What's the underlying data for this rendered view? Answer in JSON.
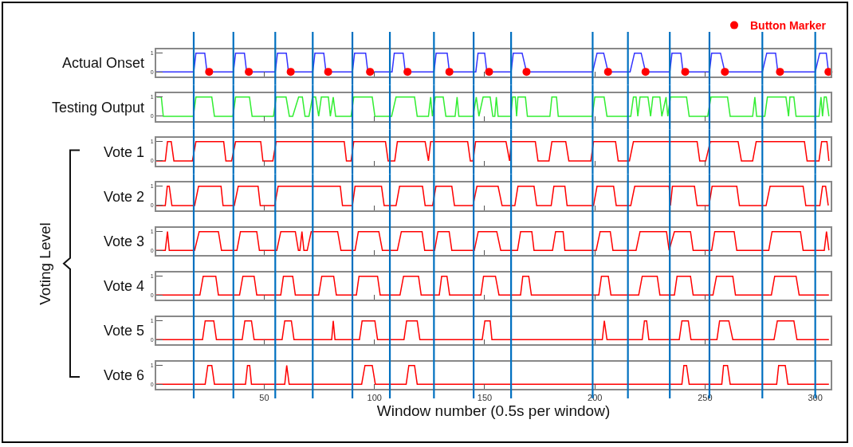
{
  "chart_data": [
    {
      "type": "line",
      "ylabel": "Actual Onset",
      "xlim": [
        1,
        307
      ],
      "xticks": [
        50,
        100,
        150,
        200,
        250,
        300
      ],
      "ylim": [
        -0.25,
        1.2
      ],
      "yticks": [
        0,
        1
      ],
      "tick_labels": "y",
      "legend": "top right",
      "series": [
        {
          "type": "line",
          "color": "#3333ff",
          "x": [
            1,
            18,
            19,
            23,
            24,
            36,
            37,
            41,
            42,
            55,
            56,
            60,
            61,
            72,
            73,
            77,
            78,
            90,
            91,
            96,
            97,
            108,
            109,
            113,
            114,
            127,
            128,
            133,
            134,
            146,
            147,
            150,
            151,
            162,
            163,
            167,
            169,
            199,
            201,
            204,
            206,
            216,
            218,
            221,
            223,
            234,
            235,
            239,
            240,
            252,
            253,
            257,
            259,
            276,
            278,
            282,
            283,
            300,
            302,
            305,
            306
          ],
          "values": [
            0,
            0,
            1,
            1,
            0,
            0,
            1,
            1,
            0,
            0,
            1,
            1,
            0,
            0,
            1,
            1,
            0,
            0,
            1,
            1,
            0,
            0,
            1,
            1,
            0,
            0,
            1,
            1,
            0,
            0,
            1,
            1,
            0,
            0,
            1,
            1,
            0,
            0,
            1,
            1,
            0,
            0,
            1,
            1,
            0,
            0,
            1,
            1,
            0,
            0,
            1,
            1,
            0,
            0,
            1,
            1,
            0,
            0,
            1,
            1,
            0
          ]
        },
        {
          "type": "scatter",
          "name": "Button Marker",
          "color": "#ff0000",
          "marker": "circle",
          "x": [
            25,
            43,
            62,
            79,
            98,
            115,
            134,
            152,
            169,
            206,
            223,
            241,
            259,
            284,
            306
          ],
          "values": [
            0,
            0,
            0,
            0,
            0,
            0,
            0,
            0,
            0,
            0,
            0,
            0,
            0,
            0,
            0
          ]
        }
      ],
      "ref_lines": [
        {
          "axis": "x",
          "value": 18
        },
        {
          "axis": "x",
          "value": 36
        },
        {
          "axis": "x",
          "value": 55
        },
        {
          "axis": "x",
          "value": 72
        },
        {
          "axis": "x",
          "value": 90
        },
        {
          "axis": "x",
          "value": 107
        },
        {
          "axis": "x",
          "value": 127
        },
        {
          "axis": "x",
          "value": 145
        },
        {
          "axis": "x",
          "value": 162
        },
        {
          "axis": "x",
          "value": 199
        },
        {
          "axis": "x",
          "value": 215
        },
        {
          "axis": "x",
          "value": 234
        },
        {
          "axis": "x",
          "value": 252
        },
        {
          "axis": "x",
          "value": 276
        },
        {
          "axis": "x",
          "value": 300
        }
      ]
    },
    {
      "type": "line",
      "ylabel": "Testing Output",
      "xlim": [
        1,
        307
      ],
      "xticks": [
        50,
        100,
        150,
        200,
        250,
        300
      ],
      "ylim": [
        -0.25,
        1.2
      ],
      "yticks": [
        0,
        1
      ],
      "tick_labels": "y",
      "series": [
        {
          "color": "#33ee33",
          "x": [
            1.3,
            3.3,
            4.2,
            17.8,
            19,
            26.2,
            27.4,
            35.8,
            37,
            43.3,
            44.5,
            54.2,
            55.4,
            59.9,
            61.4,
            62.9,
            65.6,
            67.3,
            68.5,
            70.3,
            71.9,
            73.3,
            74.7,
            75.9,
            79.1,
            80,
            81.3,
            82.4,
            89.4,
            90.6,
            99,
            100.2,
            107.8,
            109.8,
            118.2,
            119.4,
            124.5,
            125.5,
            126.3,
            127.6,
            131.2,
            132.4,
            136.6,
            137.5,
            138.3,
            144.7,
            146.2,
            147.4,
            149.3,
            152.5,
            153.7,
            154.6,
            155.3,
            156.1,
            161.8,
            162.7,
            163.9,
            164.5,
            165.1,
            168.5,
            169.4,
            179.6,
            180.5,
            182.6,
            183.4,
            198.8,
            200,
            204.2,
            205.5,
            216.3,
            217.5,
            218.7,
            219.5,
            220.5,
            224.1,
            225.3,
            226.3,
            229.5,
            230.4,
            232.3,
            233.1,
            234.3,
            241.6,
            242.8,
            251.2,
            252.7,
            260.2,
            261.4,
            271.6,
            272.6,
            273.4,
            277.1,
            278.3,
            286.7,
            287.9,
            288.5,
            290.3,
            291.3,
            301.7,
            302.6,
            303.3,
            304.1,
            305,
            306.2
          ],
          "values": [
            1,
            1,
            0,
            0,
            1,
            1,
            0,
            0,
            1,
            1,
            0,
            0,
            1,
            1,
            0,
            0,
            1,
            1,
            0,
            0,
            1,
            1,
            0,
            1,
            1,
            0,
            1,
            0,
            0,
            1,
            1,
            0,
            0,
            1,
            1,
            0,
            0,
            1,
            0,
            1,
            1,
            0,
            0,
            1,
            0,
            0,
            1,
            0,
            1,
            1,
            0,
            0,
            1,
            0,
            0,
            1,
            1,
            0,
            1,
            1,
            0,
            0,
            1,
            1,
            0,
            0,
            1,
            1,
            0,
            0,
            1,
            1,
            0,
            1,
            1,
            0,
            1,
            1,
            0,
            1,
            0,
            1,
            1,
            0,
            0,
            1,
            1,
            0,
            0,
            1,
            0,
            0,
            1,
            1,
            0,
            1,
            1,
            0,
            0,
            1,
            0,
            1,
            1,
            0
          ]
        }
      ],
      "ref_lines": [
        {
          "axis": "x",
          "value": 18
        },
        {
          "axis": "x",
          "value": 36
        },
        {
          "axis": "x",
          "value": 55
        },
        {
          "axis": "x",
          "value": 72
        },
        {
          "axis": "x",
          "value": 90
        },
        {
          "axis": "x",
          "value": 107
        },
        {
          "axis": "x",
          "value": 127
        },
        {
          "axis": "x",
          "value": 145
        },
        {
          "axis": "x",
          "value": 162
        },
        {
          "axis": "x",
          "value": 199
        },
        {
          "axis": "x",
          "value": 215
        },
        {
          "axis": "x",
          "value": 234
        },
        {
          "axis": "x",
          "value": 252
        },
        {
          "axis": "x",
          "value": 276
        },
        {
          "axis": "x",
          "value": 300
        }
      ]
    },
    {
      "type": "line",
      "ylabel": "Vote 1",
      "annotations": [
        "Voting Level"
      ],
      "xlim": [
        1,
        307
      ],
      "xticks": [
        50,
        100,
        150,
        200,
        250,
        300
      ],
      "ylim": [
        -0.25,
        1.2
      ],
      "yticks": [
        0,
        1
      ],
      "tick_labels": "y",
      "series": [
        {
          "color": "#ff0000",
          "x": [
            1,
            5.1,
            6.1,
            7.8,
            9,
            17.4,
            19,
            31.6,
            32.6,
            35.2,
            37,
            48.4,
            49.4,
            53.9,
            55.4,
            86.3,
            87.3,
            89.4,
            90.6,
            105,
            106.2,
            109.2,
            110.4,
            123,
            124.5,
            125.5,
            142.3,
            143.5,
            144.7,
            145.9,
            159.7,
            161.3,
            162.1,
            173,
            174.2,
            179.2,
            180.5,
            186.8,
            188.2,
            198.2,
            199.4,
            209.4,
            210.6,
            215.7,
            217.5,
            246.4,
            247.6,
            250.3,
            252.4,
            265,
            266.5,
            271.6,
            273.2,
            295.1,
            296.3,
            301.7,
            302.9,
            305.3,
            306.2
          ],
          "values": [
            0,
            0,
            1,
            1,
            0,
            0,
            1,
            1,
            0,
            0,
            1,
            1,
            0,
            0,
            1,
            1,
            0,
            0,
            1,
            1,
            0,
            0,
            1,
            1,
            0,
            1,
            1,
            0,
            0,
            1,
            1,
            0,
            1,
            1,
            0,
            0,
            1,
            1,
            0,
            0,
            1,
            1,
            0,
            0,
            1,
            1,
            0,
            0,
            1,
            1,
            0,
            0,
            1,
            1,
            0,
            0,
            1,
            1,
            0
          ]
        }
      ],
      "ref_lines": [
        {
          "axis": "x",
          "value": 18
        },
        {
          "axis": "x",
          "value": 36
        },
        {
          "axis": "x",
          "value": 55
        },
        {
          "axis": "x",
          "value": 72
        },
        {
          "axis": "x",
          "value": 90
        },
        {
          "axis": "x",
          "value": 107
        },
        {
          "axis": "x",
          "value": 127
        },
        {
          "axis": "x",
          "value": 145
        },
        {
          "axis": "x",
          "value": 162
        },
        {
          "axis": "x",
          "value": 199
        },
        {
          "axis": "x",
          "value": 215
        },
        {
          "axis": "x",
          "value": 234
        },
        {
          "axis": "x",
          "value": 252
        },
        {
          "axis": "x",
          "value": 276
        },
        {
          "axis": "x",
          "value": 300
        }
      ]
    },
    {
      "type": "line",
      "ylabel": "Vote 2",
      "xlim": [
        1,
        307
      ],
      "xticks": [
        50,
        100,
        150,
        200,
        250,
        300
      ],
      "ylim": [
        -0.25,
        1.2
      ],
      "yticks": [
        0,
        1
      ],
      "tick_labels": "y",
      "series": [
        {
          "color": "#ff0000",
          "x": [
            1,
            5.1,
            6,
            6.9,
            8.1,
            18.4,
            20.2,
            30.4,
            31.3,
            36.4,
            38.2,
            47.2,
            48.2,
            54.7,
            56.3,
            84.5,
            85.5,
            90,
            91.2,
            103.2,
            104.4,
            109.8,
            111.4,
            121.8,
            123,
            126.4,
            127.9,
            135.1,
            136.3,
            144.7,
            146.5,
            156.1,
            157.9,
            163.7,
            165.1,
            172.4,
            173.6,
            180.2,
            181.4,
            186.4,
            187.4,
            199.4,
            201,
            208.5,
            209.7,
            216.3,
            218.1,
            233.7,
            234.3,
            235.2,
            245.2,
            246.4,
            251.8,
            253.2,
            264.4,
            265.6,
            277.7,
            279.5,
            294.5,
            295.7,
            302.1,
            303.3,
            304.7,
            305.9
          ],
          "values": [
            0,
            0,
            1,
            1,
            0,
            0,
            1,
            1,
            0,
            0,
            1,
            1,
            0,
            0,
            1,
            1,
            0,
            0,
            1,
            1,
            0,
            0,
            1,
            1,
            0,
            0,
            1,
            1,
            0,
            0,
            1,
            1,
            0,
            0,
            1,
            1,
            0,
            0,
            1,
            1,
            0,
            0,
            1,
            1,
            0,
            0,
            1,
            1,
            0,
            1,
            1,
            0,
            0,
            1,
            1,
            0,
            0,
            1,
            1,
            0,
            0,
            1,
            1,
            0
          ]
        }
      ],
      "ref_lines": [
        {
          "axis": "x",
          "value": 18
        },
        {
          "axis": "x",
          "value": 36
        },
        {
          "axis": "x",
          "value": 55
        },
        {
          "axis": "x",
          "value": 72
        },
        {
          "axis": "x",
          "value": 90
        },
        {
          "axis": "x",
          "value": 107
        },
        {
          "axis": "x",
          "value": 127
        },
        {
          "axis": "x",
          "value": 145
        },
        {
          "axis": "x",
          "value": 162
        },
        {
          "axis": "x",
          "value": 199
        },
        {
          "axis": "x",
          "value": 215
        },
        {
          "axis": "x",
          "value": 234
        },
        {
          "axis": "x",
          "value": 252
        },
        {
          "axis": "x",
          "value": 276
        },
        {
          "axis": "x",
          "value": 300
        }
      ]
    },
    {
      "type": "line",
      "ylabel": "Vote 3",
      "xlim": [
        1,
        307
      ],
      "xticks": [
        50,
        100,
        150,
        200,
        250,
        300
      ],
      "ylim": [
        -0.25,
        1.2
      ],
      "yticks": [
        0,
        1
      ],
      "tick_labels": "y",
      "series": [
        {
          "color": "#ff0000",
          "x": [
            1,
            5.1,
            6.1,
            6.9,
            18.4,
            20.5,
            29.2,
            30.6,
            37.6,
            39.2,
            46.6,
            47.8,
            55.7,
            57.5,
            64.1,
            65.5,
            66.2,
            67.1,
            68,
            69.5,
            71.3,
            83.3,
            84.8,
            91.2,
            92.7,
            102,
            103.6,
            110.4,
            112.2,
            121.6,
            122.8,
            127.3,
            128.8,
            133.9,
            135.1,
            145.3,
            147.1,
            155.5,
            157.3,
            164.9,
            166.3,
            171.4,
            172.4,
            180.8,
            182.2,
            185.6,
            186.4,
            200.6,
            202.4,
            207,
            208.2,
            218.7,
            220.5,
            232.5,
            233.7,
            236.1,
            243.4,
            244.6,
            253,
            254.4,
            263.2,
            264.4,
            278.9,
            280.4,
            293.3,
            294.5,
            304.1,
            305.1,
            306.2
          ],
          "values": [
            0,
            0,
            1,
            0,
            0,
            1,
            1,
            0,
            0,
            1,
            1,
            0,
            0,
            1,
            1,
            0,
            0,
            1,
            0,
            0,
            1,
            1,
            0,
            0,
            1,
            1,
            0,
            0,
            1,
            1,
            0,
            0,
            1,
            1,
            0,
            0,
            1,
            1,
            0,
            0,
            1,
            1,
            0,
            0,
            1,
            1,
            0,
            0,
            1,
            1,
            0,
            0,
            1,
            1,
            0,
            1,
            1,
            0,
            0,
            1,
            1,
            0,
            0,
            1,
            1,
            0,
            0,
            1,
            0
          ]
        }
      ],
      "ref_lines": [
        {
          "axis": "x",
          "value": 18
        },
        {
          "axis": "x",
          "value": 36
        },
        {
          "axis": "x",
          "value": 55
        },
        {
          "axis": "x",
          "value": 72
        },
        {
          "axis": "x",
          "value": 90
        },
        {
          "axis": "x",
          "value": 107
        },
        {
          "axis": "x",
          "value": 127
        },
        {
          "axis": "x",
          "value": 145
        },
        {
          "axis": "x",
          "value": 162
        },
        {
          "axis": "x",
          "value": 199
        },
        {
          "axis": "x",
          "value": 215
        },
        {
          "axis": "x",
          "value": 234
        },
        {
          "axis": "x",
          "value": 252
        },
        {
          "axis": "x",
          "value": 276
        },
        {
          "axis": "x",
          "value": 300
        }
      ]
    },
    {
      "type": "line",
      "ylabel": "Vote 4",
      "xlim": [
        1,
        307
      ],
      "xticks": [
        50,
        100,
        150,
        200,
        250,
        300
      ],
      "ylim": [
        -0.25,
        1.2
      ],
      "yticks": [
        0,
        1
      ],
      "tick_labels": "y",
      "series": [
        {
          "color": "#ff0000",
          "x": [
            1,
            20.8,
            22.3,
            28,
            29.2,
            38.8,
            40.3,
            45.4,
            46.6,
            57.5,
            58.7,
            62.9,
            64.1,
            74.7,
            76.1,
            81.5,
            82.7,
            91.8,
            93,
            101.4,
            102.6,
            111.6,
            113.2,
            120,
            121.2,
            129.4,
            130.5,
            132.9,
            134.1,
            148.3,
            149.5,
            154.9,
            156.5,
            166.3,
            167.3,
            170,
            171.2,
            201.8,
            203,
            206.1,
            207.3,
            219.9,
            221.5,
            228.3,
            229.5,
            236.1,
            237.3,
            243.4,
            244.6,
            253.6,
            255.2,
            262.6,
            263.8,
            280.1,
            281.6,
            291.3,
            292.7,
            306.2
          ],
          "values": [
            0,
            0,
            1,
            1,
            0,
            0,
            1,
            1,
            0,
            0,
            1,
            1,
            0,
            0,
            1,
            1,
            0,
            0,
            1,
            1,
            0,
            0,
            1,
            1,
            0,
            0,
            1,
            1,
            0,
            0,
            1,
            1,
            0,
            0,
            1,
            1,
            0,
            0,
            1,
            1,
            0,
            0,
            1,
            1,
            0,
            0,
            1,
            1,
            0,
            0,
            1,
            1,
            0,
            0,
            1,
            1,
            0,
            0
          ]
        }
      ],
      "ref_lines": [
        {
          "axis": "x",
          "value": 18
        },
        {
          "axis": "x",
          "value": 36
        },
        {
          "axis": "x",
          "value": 55
        },
        {
          "axis": "x",
          "value": 72
        },
        {
          "axis": "x",
          "value": 90
        },
        {
          "axis": "x",
          "value": 107
        },
        {
          "axis": "x",
          "value": 127
        },
        {
          "axis": "x",
          "value": 145
        },
        {
          "axis": "x",
          "value": 162
        },
        {
          "axis": "x",
          "value": 199
        },
        {
          "axis": "x",
          "value": 215
        },
        {
          "axis": "x",
          "value": 234
        },
        {
          "axis": "x",
          "value": 252
        },
        {
          "axis": "x",
          "value": 276
        },
        {
          "axis": "x",
          "value": 300
        }
      ]
    },
    {
      "type": "line",
      "ylabel": "Vote 5",
      "xlim": [
        1,
        307
      ],
      "xticks": [
        50,
        100,
        150,
        200,
        250,
        300
      ],
      "ylim": [
        -0.25,
        1.2
      ],
      "yticks": [
        0,
        1
      ],
      "tick_labels": "y",
      "series": [
        {
          "color": "#ff0000",
          "x": [
            1,
            22,
            23.2,
            27.1,
            28.3,
            40,
            41.2,
            44.2,
            45.4,
            58.1,
            59.3,
            62.3,
            63.5,
            80.6,
            81.3,
            82.1,
            93.2,
            94.4,
            100.2,
            101.4,
            113.4,
            114.6,
            119.4,
            120.6,
            148.9,
            150.1,
            152.5,
            153.3,
            203.4,
            204.3,
            205.5,
            221.5,
            222.5,
            223.5,
            224.5,
            238.3,
            239.5,
            242.4,
            243.6,
            255.4,
            256.6,
            260.8,
            262.6,
            281.3,
            282.8,
            290.3,
            291.7,
            306.2
          ],
          "values": [
            0,
            0,
            1,
            1,
            0,
            0,
            1,
            1,
            0,
            0,
            1,
            1,
            0,
            0,
            1,
            0,
            0,
            1,
            1,
            0,
            0,
            1,
            1,
            0,
            0,
            1,
            1,
            0,
            0,
            1,
            0,
            0,
            1,
            1,
            0,
            0,
            1,
            1,
            0,
            0,
            1,
            1,
            0,
            0,
            1,
            1,
            0,
            0
          ]
        }
      ],
      "ref_lines": [
        {
          "axis": "x",
          "value": 18
        },
        {
          "axis": "x",
          "value": 36
        },
        {
          "axis": "x",
          "value": 55
        },
        {
          "axis": "x",
          "value": 72
        },
        {
          "axis": "x",
          "value": 90
        },
        {
          "axis": "x",
          "value": 107
        },
        {
          "axis": "x",
          "value": 127
        },
        {
          "axis": "x",
          "value": 145
        },
        {
          "axis": "x",
          "value": 162
        },
        {
          "axis": "x",
          "value": 199
        },
        {
          "axis": "x",
          "value": 215
        },
        {
          "axis": "x",
          "value": 234
        },
        {
          "axis": "x",
          "value": 252
        },
        {
          "axis": "x",
          "value": 276
        },
        {
          "axis": "x",
          "value": 300
        }
      ]
    },
    {
      "type": "line",
      "ylabel": "Vote 6",
      "xlabel": "Window number (0.5s per window)",
      "xlim": [
        1,
        307
      ],
      "xticks": [
        50,
        100,
        150,
        200,
        250,
        300
      ],
      "ylim": [
        -0.25,
        1.2
      ],
      "yticks": [
        0,
        1
      ],
      "series": [
        {
          "color": "#ff0000",
          "x": [
            1,
            23.2,
            24.4,
            26.2,
            27.4,
            41.5,
            42.4,
            43.4,
            44.2,
            59.3,
            60.2,
            61.3,
            94.2,
            95.7,
            99,
            100.4,
            114.4,
            115.6,
            118.2,
            119.4,
            239.5,
            240.4,
            241.6,
            242.8,
            257.6,
            258.4,
            260.2,
            261.4,
            282.5,
            283.4,
            286.4,
            287.6,
            306.2
          ],
          "values": [
            0,
            0,
            1,
            1,
            0,
            0,
            1,
            1,
            0,
            0,
            1,
            0,
            0,
            1,
            1,
            0,
            0,
            1,
            1,
            0,
            0,
            1,
            1,
            0,
            0,
            1,
            1,
            0,
            0,
            1,
            1,
            0,
            0
          ]
        }
      ],
      "ref_lines": [
        {
          "axis": "x",
          "value": 18
        },
        {
          "axis": "x",
          "value": 36
        },
        {
          "axis": "x",
          "value": 55
        },
        {
          "axis": "x",
          "value": 72
        },
        {
          "axis": "x",
          "value": 90
        },
        {
          "axis": "x",
          "value": 107
        },
        {
          "axis": "x",
          "value": 127
        },
        {
          "axis": "x",
          "value": 145
        },
        {
          "axis": "x",
          "value": 162
        },
        {
          "axis": "x",
          "value": 199
        },
        {
          "axis": "x",
          "value": 215
        },
        {
          "axis": "x",
          "value": 234
        },
        {
          "axis": "x",
          "value": 252
        },
        {
          "axis": "x",
          "value": 276
        },
        {
          "axis": "x",
          "value": 300
        }
      ]
    }
  ]
}
